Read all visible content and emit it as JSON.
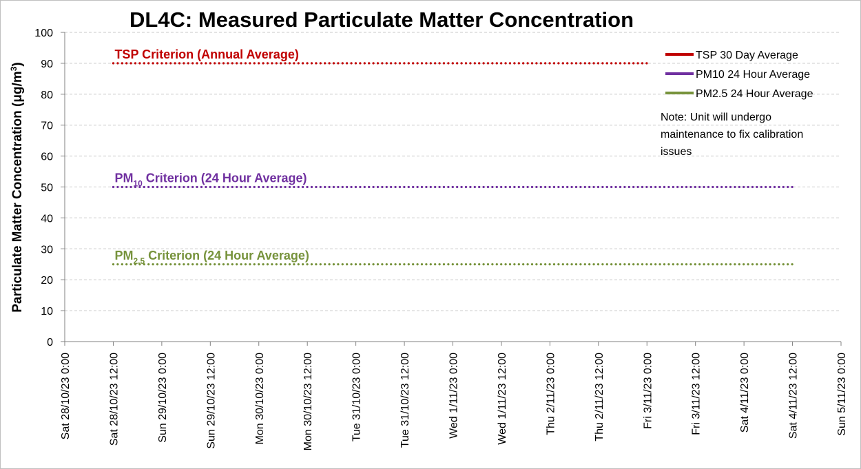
{
  "chart_data": {
    "type": "line",
    "title": "DL4C: Measured Particulate Matter Concentration",
    "ylabel_main": "Particulate Matter Concentration (μg/m",
    "ylabel_sup": "3",
    "ylabel_end": ")",
    "xlabel": "",
    "ylim": [
      0,
      100
    ],
    "yticks": [
      0,
      10,
      20,
      30,
      40,
      50,
      60,
      70,
      80,
      90,
      100
    ],
    "grid": true,
    "legend_position": "top-right",
    "x_ticks": [
      "Sat 28/10/23 0:00",
      "Sat 28/10/23 12:00",
      "Sun 29/10/23 0:00",
      "Sun 29/10/23 12:00",
      "Mon 30/10/23 0:00",
      "Mon 30/10/23 12:00",
      "Tue 31/10/23 0:00",
      "Tue 31/10/23 12:00",
      "Wed 1/11/23 0:00",
      "Wed 1/11/23 12:00",
      "Thu 2/11/23 0:00",
      "Thu 2/11/23 12:00",
      "Fri 3/11/23 0:00",
      "Fri 3/11/23 12:00",
      "Sat 4/11/23 0:00",
      "Sat 4/11/23 12:00",
      "Sun 5/11/23 0:00"
    ],
    "series": [
      {
        "name": "TSP 30 Day Average",
        "color": "#c00000",
        "values": []
      },
      {
        "name": "PM10 24 Hour Average",
        "color": "#7030a0",
        "values": []
      },
      {
        "name": "PM2.5 24 Hour Average",
        "color": "#77933c",
        "values": []
      }
    ],
    "criteria": [
      {
        "label_main": "TSP Criterion (Annual Average)",
        "label_sub": "",
        "label_tail": "",
        "value": 90,
        "x_start": "Sat 28/10/23 12:00",
        "x_end": "Fri 3/11/23 0:00",
        "color": "#c00000"
      },
      {
        "label_main": "PM",
        "label_sub": "10",
        "label_tail": " Criterion (24 Hour Average)",
        "value": 50,
        "x_start": "Sat 28/10/23 12:00",
        "x_end": "Sat 4/11/23 12:00",
        "color": "#7030a0"
      },
      {
        "label_main": "PM",
        "label_sub": "2.5",
        "label_tail": " Criterion (24 Hour Average)",
        "value": 25,
        "x_start": "Sat 28/10/23 12:00",
        "x_end": "Sat 4/11/23 12:00",
        "color": "#77933c"
      }
    ],
    "note_lines": [
      "Note: Unit will undergo",
      "maintenance to fix calibration",
      "issues"
    ]
  }
}
